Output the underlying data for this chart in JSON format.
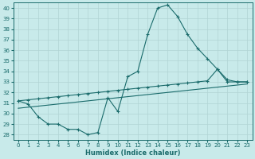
{
  "xlabel": "Humidex (Indice chaleur)",
  "bg_color": "#c8eaea",
  "line_color": "#1a6b6b",
  "grid_color": "#b0d4d4",
  "ylim": [
    27.5,
    40.5
  ],
  "xlim": [
    -0.5,
    23.5
  ],
  "yticks": [
    28,
    29,
    30,
    31,
    32,
    33,
    34,
    35,
    36,
    37,
    38,
    39,
    40
  ],
  "xticks": [
    0,
    1,
    2,
    3,
    4,
    5,
    6,
    7,
    8,
    9,
    10,
    11,
    12,
    13,
    14,
    15,
    16,
    17,
    18,
    19,
    20,
    21,
    22,
    23
  ],
  "series": [
    {
      "x": [
        0,
        1,
        2,
        3,
        4,
        5,
        6,
        7,
        8,
        9,
        10,
        11,
        12,
        13,
        14,
        15,
        16,
        17,
        18,
        19,
        20,
        21,
        22,
        23
      ],
      "y": [
        31.2,
        30.9,
        29.7,
        29.0,
        29.0,
        28.5,
        28.5,
        28.0,
        28.2,
        31.5,
        30.2,
        33.5,
        34.0,
        37.5,
        40.0,
        40.3,
        39.2,
        37.5,
        36.2,
        35.2,
        34.2,
        33.0,
        33.0,
        33.0
      ],
      "marker": true
    },
    {
      "x": [
        0,
        1,
        2,
        3,
        4,
        5,
        6,
        7,
        8,
        9,
        10,
        11,
        12,
        13,
        14,
        15,
        16,
        17,
        18,
        19,
        20,
        21,
        22,
        23
      ],
      "y": [
        31.2,
        31.3,
        31.4,
        31.5,
        31.6,
        31.7,
        31.8,
        31.9,
        32.0,
        32.1,
        32.2,
        32.3,
        32.4,
        32.5,
        32.6,
        32.7,
        32.8,
        32.9,
        33.0,
        33.1,
        34.2,
        33.2,
        33.0,
        33.0
      ],
      "marker": true
    },
    {
      "x": [
        0,
        1,
        2,
        3,
        4,
        5,
        6,
        7,
        8,
        9,
        10,
        11,
        12,
        13,
        14,
        15,
        16,
        17,
        18,
        19,
        20,
        21,
        22,
        23
      ],
      "y": [
        30.5,
        30.6,
        30.7,
        30.8,
        30.9,
        31.0,
        31.1,
        31.2,
        31.3,
        31.4,
        31.5,
        31.6,
        31.7,
        31.8,
        31.9,
        32.0,
        32.1,
        32.2,
        32.3,
        32.4,
        32.5,
        32.6,
        32.7,
        32.8
      ],
      "marker": false
    }
  ]
}
